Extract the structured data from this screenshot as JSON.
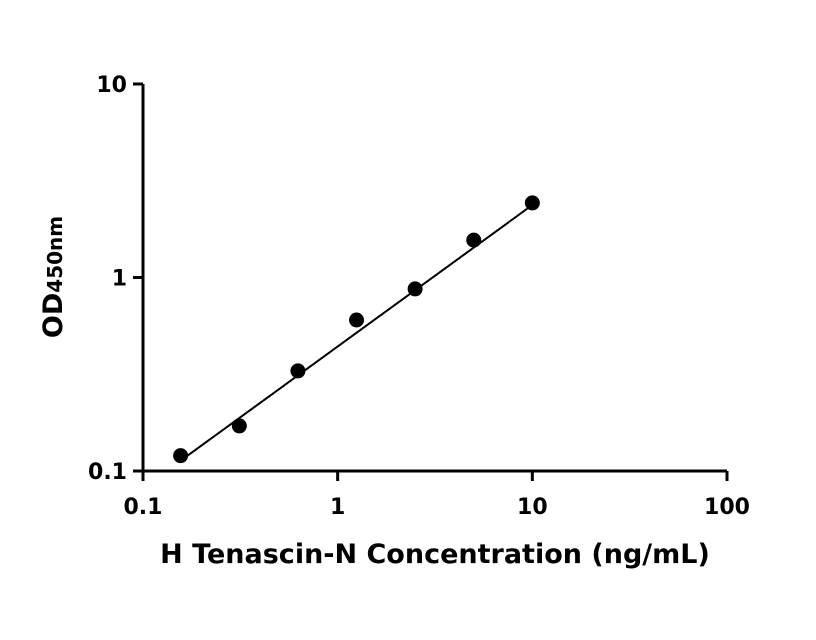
{
  "chart_data": {
    "type": "scatter",
    "x_label": "H Tenascin-N Concentration (ng/mL)",
    "y_label": {
      "main": "OD",
      "subscript": "450nm"
    },
    "xscale": "log",
    "yscale": "log",
    "xlim": [
      0.1,
      100
    ],
    "ylim": [
      0.1,
      10
    ],
    "xticks": [
      0.1,
      1,
      10,
      100
    ],
    "yticks": [
      0.1,
      1,
      10
    ],
    "grid": false,
    "series": [
      {
        "color": "#000000",
        "x": [
          0.156,
          0.3125,
          0.625,
          1.25,
          2.5,
          5,
          10
        ],
        "values": [
          0.12,
          0.171,
          0.329,
          0.603,
          0.873,
          1.56,
          2.43
        ]
      }
    ],
    "fit_line": {
      "color": "#000000",
      "x": [
        0.156,
        10
      ],
      "values": [
        0.113,
        2.37
      ]
    }
  }
}
